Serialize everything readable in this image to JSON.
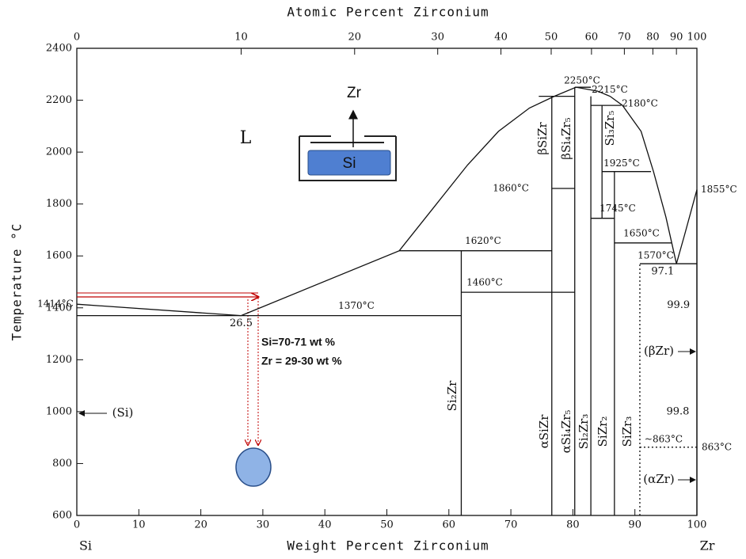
{
  "chart_data": {
    "type": "phase-diagram",
    "title": "Atomic Percent Zirconium",
    "x_label": "Weight Percent Zirconium",
    "y_label": "Temperature °C",
    "x_left_label": "Si",
    "x_right_label": "Zr",
    "xlim": [
      0,
      100
    ],
    "ylim": [
      600,
      2400
    ],
    "xticks": [
      0,
      10,
      20,
      30,
      40,
      50,
      60,
      70,
      80,
      90,
      100
    ],
    "yticks": [
      600,
      800,
      1000,
      1200,
      1400,
      1600,
      1800,
      2000,
      2200,
      2400
    ],
    "top_ticks": [
      0,
      {
        "value": 26.5,
        "label": "10"
      },
      {
        "value": 44.8,
        "label": "20"
      },
      {
        "value": 58.2,
        "label": "30"
      },
      {
        "value": 68.4,
        "label": "40"
      },
      {
        "value": 76.5,
        "label": "50"
      },
      {
        "value": 83.0,
        "label": "60"
      },
      {
        "value": 88.3,
        "label": "70"
      },
      {
        "value": 92.9,
        "label": "80"
      },
      {
        "value": 96.7,
        "label": "90"
      },
      100
    ],
    "color": "#111111",
    "boundaries": [
      {
        "x": [
          0,
          26.5
        ],
        "y": [
          1414,
          1370
        ]
      },
      {
        "x": [
          26.5,
          52,
          58,
          63,
          68,
          73,
          77,
          80.5,
          84,
          86,
          88,
          91,
          93,
          95,
          96.7
        ],
        "y": [
          1370,
          1620,
          1800,
          1950,
          2080,
          2170,
          2215,
          2250,
          2235,
          2215,
          2180,
          2080,
          1925,
          1750,
          1570
        ]
      },
      {
        "x": [
          96.7,
          98,
          100
        ],
        "y": [
          1570,
          1680,
          1855
        ]
      },
      {
        "x": [
          0,
          62
        ],
        "y": [
          1370,
          1370
        ]
      },
      {
        "x": [
          52,
          76.6
        ],
        "y": [
          1620,
          1620
        ]
      },
      {
        "x": [
          62,
          80.3
        ],
        "y": [
          1460,
          1460
        ]
      },
      {
        "x": [
          62,
          62
        ],
        "y": [
          600,
          1620
        ]
      },
      {
        "x": [
          76.6,
          76.6
        ],
        "y": [
          600,
          2215
        ]
      },
      {
        "x": [
          74.5,
          80.3
        ],
        "y": [
          2215,
          2215
        ]
      },
      {
        "x": [
          76.6,
          80.3
        ],
        "y": [
          1860,
          1860
        ]
      },
      {
        "x": [
          80.3,
          80.3
        ],
        "y": [
          600,
          2250
        ]
      },
      {
        "x": [
          80.3,
          82.9
        ],
        "y": [
          2250,
          2250
        ]
      },
      {
        "x": [
          82.9,
          82.9
        ],
        "y": [
          600,
          2215
        ]
      },
      {
        "x": [
          82.9,
          87.8
        ],
        "y": [
          2180,
          2180
        ]
      },
      {
        "x": [
          84.7,
          84.7
        ],
        "y": [
          1745,
          2180
        ]
      },
      {
        "x": [
          82.9,
          86.7
        ],
        "y": [
          1745,
          1745
        ]
      },
      {
        "x": [
          86.7,
          86.7
        ],
        "y": [
          600,
          1925
        ]
      },
      {
        "x": [
          84.7,
          92.6
        ],
        "y": [
          1925,
          1925
        ]
      },
      {
        "x": [
          86.7,
          95.9
        ],
        "y": [
          1650,
          1650
        ]
      },
      {
        "x": [
          90.8,
          100
        ],
        "y": [
          1570,
          1570
        ]
      },
      {
        "x": [
          100,
          100
        ],
        "y": [
          600,
          1855
        ]
      },
      {
        "x": [
          90.8,
          90.8
        ],
        "y": [
          600,
          1570
        ],
        "dashed": true
      },
      {
        "x": [
          90.8,
          100
        ],
        "y": [
          863,
          863
        ],
        "dashed": true
      }
    ],
    "temperature_labels": [
      {
        "label": "2250°C",
        "value": 2250
      },
      {
        "label": "2215°C",
        "value": 2215
      },
      {
        "label": "2180°C",
        "value": 2180
      },
      {
        "label": "1860°C",
        "value": 1860
      },
      {
        "label": "1925°C",
        "value": 1925
      },
      {
        "label": "1745°C",
        "value": 1745
      },
      {
        "label": "1650°C",
        "value": 1650
      },
      {
        "label": "1570°C",
        "value": 1570
      },
      {
        "label": "1620°C",
        "value": 1620
      },
      {
        "label": "1460°C",
        "value": 1460
      },
      {
        "label": "1370°C",
        "value": 1370
      },
      {
        "label": "1855°C",
        "value": 1855
      },
      {
        "label": "1414°C",
        "value": 1414
      },
      {
        "label": "~863°C",
        "value": 863
      },
      {
        "label": "863°C",
        "value": 863
      }
    ],
    "composition_labels": [
      26.5,
      97.1,
      99.9,
      99.8
    ],
    "phase_labels": [
      "L",
      "(Si)",
      "Si₂Zr",
      "αSiZr",
      "αSi₄Zr₅",
      "Si₂Zr₃",
      "SiZr₂",
      "SiZr₃",
      "βSiZr",
      "βSi₄Zr₅",
      "Si₃Zr₅",
      "(βZr)",
      "(αZr)"
    ],
    "notes": [
      "Si=70-71 wt %",
      "Zr = 29-30 wt %"
    ],
    "crucible": {
      "top": "Zr",
      "inside": "Si"
    }
  }
}
